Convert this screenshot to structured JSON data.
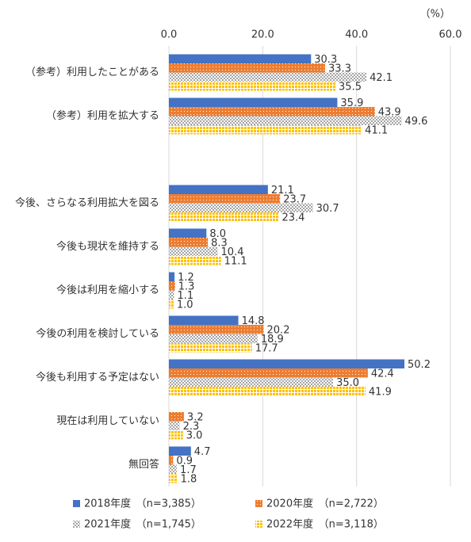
{
  "chart_data": {
    "type": "hbar",
    "unit": "（%）",
    "categories": [
      "（参考）利用したことがある",
      "（参考）利用を拡大する",
      null,
      "今後、さらなる利用拡大を図る",
      "今後も現状を維持する",
      "今後は利用を縮小する",
      "今後の利用を検討している",
      "今後も利用する予定はない",
      "現在は利用していない",
      "無回答"
    ],
    "series": [
      {
        "name": "2018年度　（n=3,385）",
        "color": "#4472c4",
        "values": [
          30.3,
          35.9,
          null,
          21.1,
          8.0,
          1.2,
          14.8,
          50.2,
          null,
          4.7
        ],
        "value_labels": [
          "30.3",
          "35.9",
          null,
          "21.1",
          "8.0",
          "1.2",
          "14.8",
          "50.2",
          null,
          "4.7"
        ]
      },
      {
        "name": "2020年度　（n=2,722）",
        "color": "#ed7d31",
        "values": [
          33.3,
          43.9,
          null,
          23.7,
          8.3,
          1.3,
          20.2,
          42.4,
          3.2,
          0.9
        ],
        "value_labels": [
          "33.3",
          "43.9",
          null,
          "23.7",
          "8.3",
          "1.3",
          "20.2",
          "42.4",
          "3.2",
          "0.9"
        ]
      },
      {
        "name": "2021年度　（n=1,745）",
        "color": "#a5a5a5",
        "values": [
          42.1,
          49.6,
          null,
          30.7,
          10.4,
          1.1,
          18.9,
          35.0,
          2.3,
          1.7
        ],
        "value_labels": [
          "42.1",
          "49.6",
          null,
          "30.7",
          "10.4",
          "1.1",
          "18.9",
          "35.0",
          "2.3",
          "1.7"
        ]
      },
      {
        "name": "2022年度　（n=3,118）",
        "color": "#ffc000",
        "values": [
          35.5,
          41.1,
          null,
          23.4,
          11.1,
          1.0,
          17.7,
          41.9,
          3.0,
          1.8
        ],
        "value_labels": [
          "35.5",
          "41.1",
          null,
          "23.4",
          "11.1",
          "1.0",
          "17.7",
          "41.9",
          "3.0",
          "1.8"
        ]
      }
    ],
    "xlim": [
      0,
      60
    ],
    "xticks": [
      {
        "value": 0,
        "label": "0.0"
      },
      {
        "value": 20,
        "label": "20.0"
      },
      {
        "value": 40,
        "label": "40.0"
      },
      {
        "value": 60,
        "label": "60.0"
      }
    ],
    "grid": true
  }
}
